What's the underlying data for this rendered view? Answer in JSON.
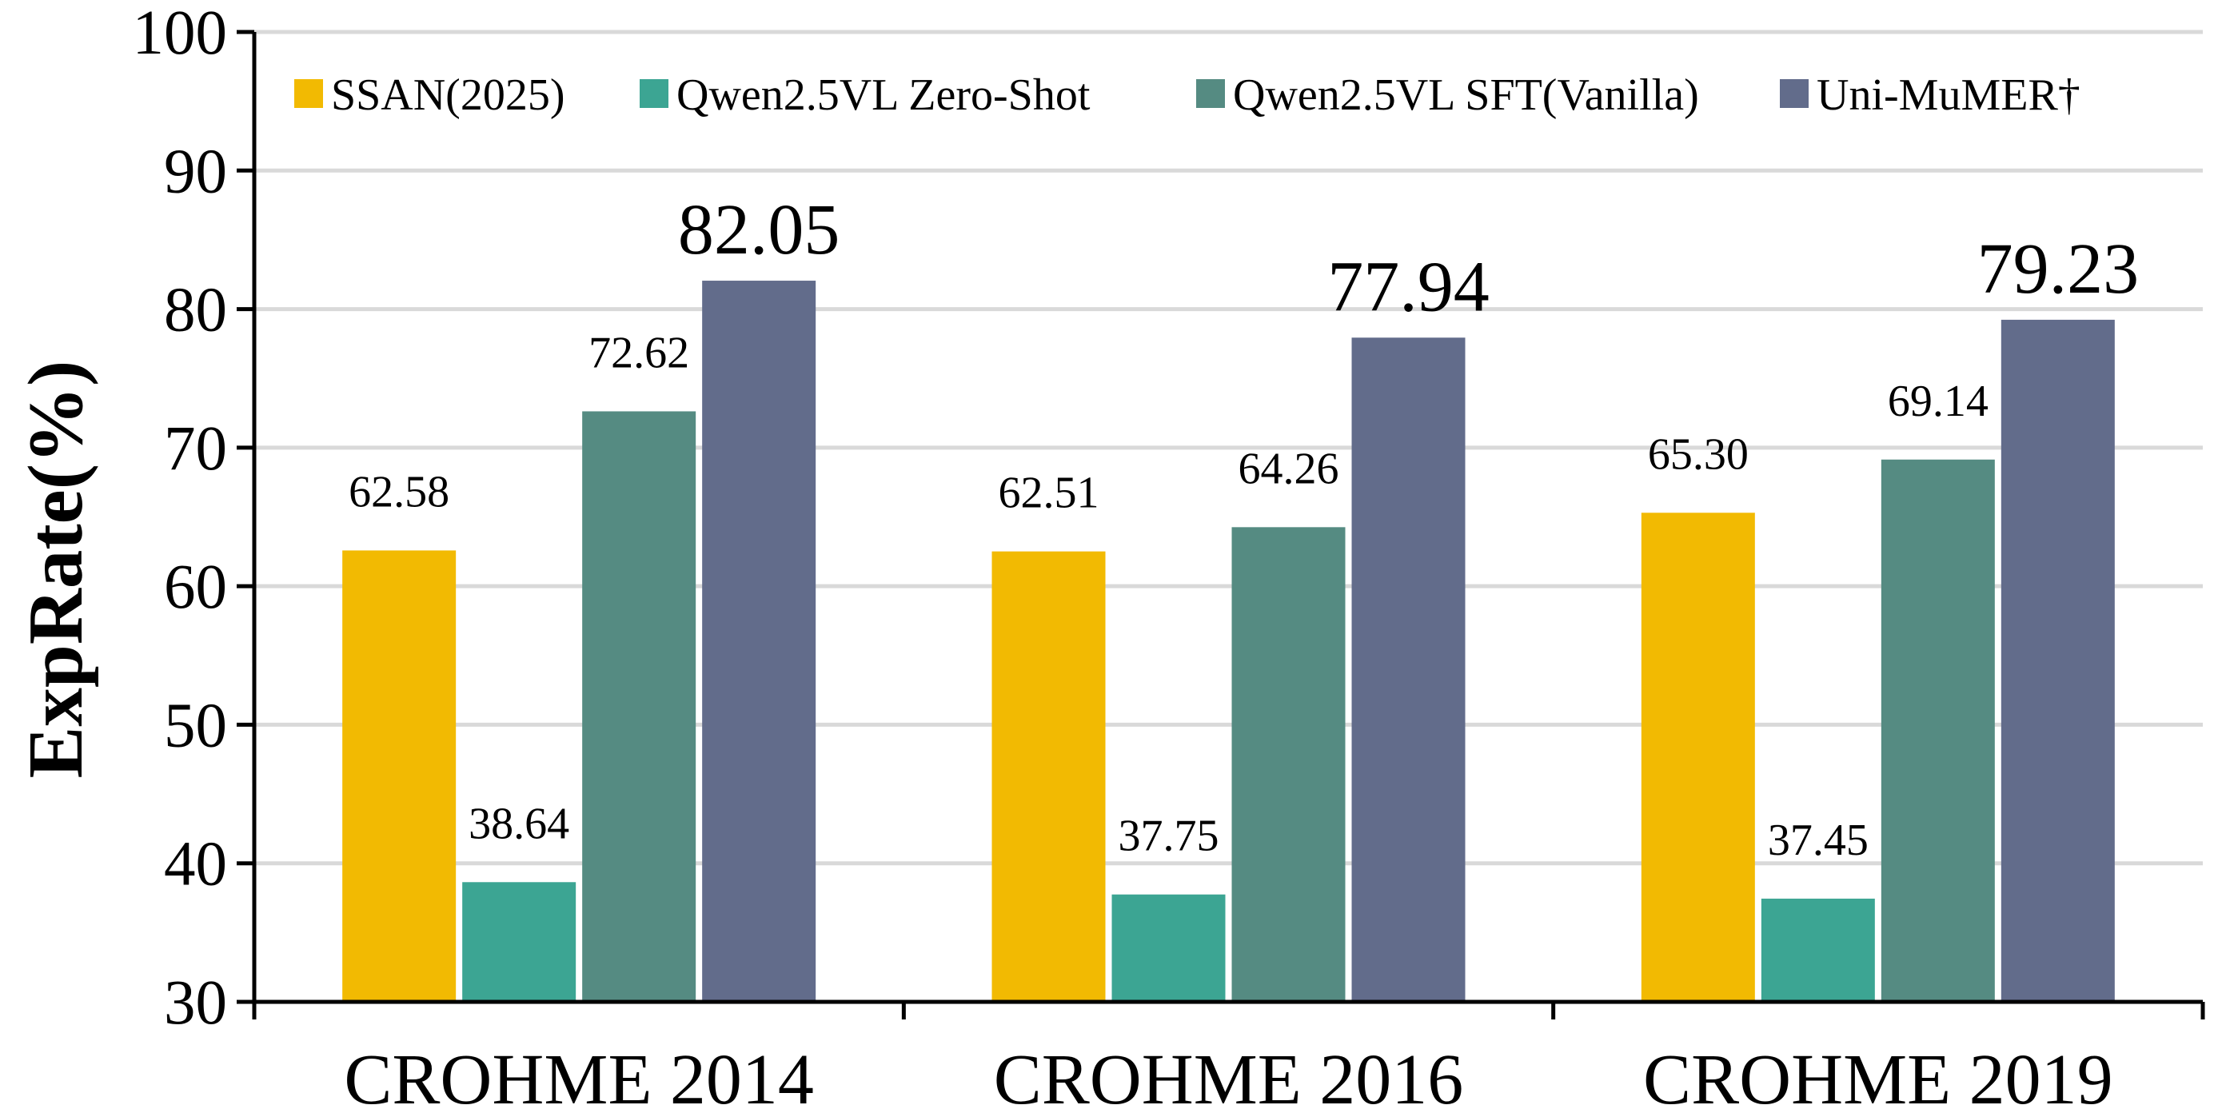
{
  "chart_data": {
    "type": "bar",
    "ylabel": "ExpRate(%)",
    "ylim": [
      30,
      100
    ],
    "yticks": [
      30,
      40,
      50,
      60,
      70,
      80,
      90,
      100
    ],
    "grid": true,
    "legend_position": "top",
    "categories": [
      "CROHME 2014",
      "CROHME 2016",
      "CROHME 2019"
    ],
    "series": [
      {
        "name": "SSAN(2025)",
        "color": "#F2BA02",
        "values": [
          62.58,
          62.51,
          65.3
        ],
        "labels": [
          "62.58",
          "62.51",
          "65.30"
        ]
      },
      {
        "name": "Qwen2.5VL Zero-Shot",
        "color": "#3CA593",
        "values": [
          38.64,
          37.75,
          37.45
        ],
        "labels": [
          "38.64",
          "37.75",
          "37.45"
        ]
      },
      {
        "name": "Qwen2.5VL SFT(Vanilla)",
        "color": "#558B82",
        "values": [
          72.62,
          64.26,
          69.14
        ],
        "labels": [
          "72.62",
          "64.26",
          "69.14"
        ]
      },
      {
        "name": "Uni-MuMER†",
        "color": "#626C8B",
        "values": [
          82.05,
          77.94,
          79.23
        ],
        "labels": [
          "82.05",
          "77.94",
          "79.23"
        ],
        "emphasis": true
      }
    ]
  }
}
